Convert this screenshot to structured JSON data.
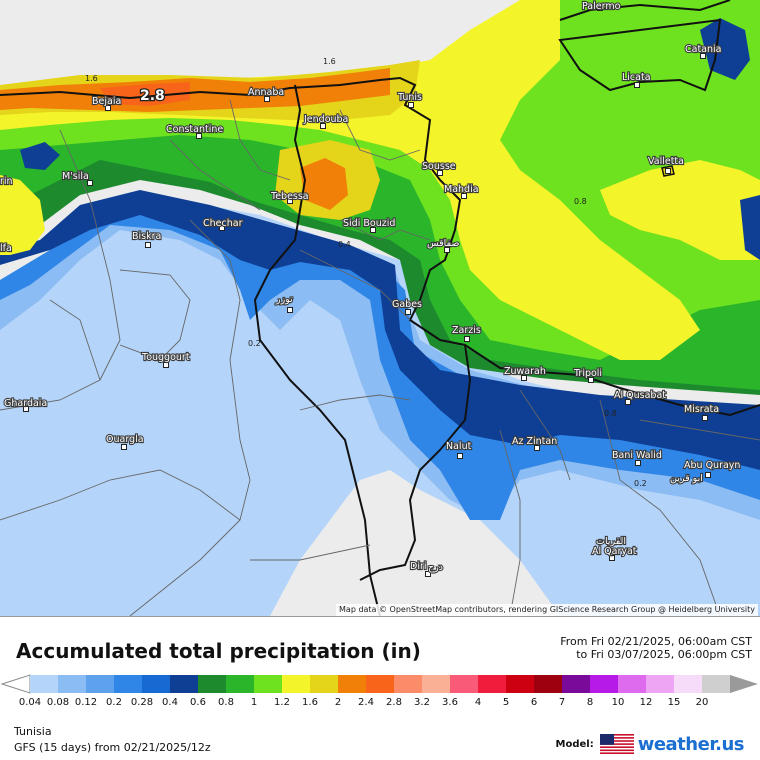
{
  "map": {
    "region_name": "Tunisia",
    "attribution": "Map data © OpenStreetMap contributors, rendering GIScience Research Group @ Heidelberg University",
    "max_value_label": "2.8",
    "cities": [
      {
        "name": "Palermo"
      },
      {
        "name": "Catania"
      },
      {
        "name": "Licata"
      },
      {
        "name": "Valletta"
      },
      {
        "name": "Tunis"
      },
      {
        "name": "Annaba"
      },
      {
        "name": "Bejaia"
      },
      {
        "name": "Constantine"
      },
      {
        "name": "Jendouba"
      },
      {
        "name": "Sousse"
      },
      {
        "name": "Mahdia"
      },
      {
        "name": "M'sila"
      },
      {
        "name": "Tebessa"
      },
      {
        "name": "Sidi Bouzid"
      },
      {
        "name": "صفاقس"
      },
      {
        "name": "Biskra"
      },
      {
        "name": "Chechar"
      },
      {
        "name": "توزر"
      },
      {
        "name": "Gabes"
      },
      {
        "name": "Zarzis"
      },
      {
        "name": "Touggourt"
      },
      {
        "name": "Zuwarah"
      },
      {
        "name": "Tripoli"
      },
      {
        "name": "Al Qusabat"
      },
      {
        "name": "Misrata"
      },
      {
        "name": "Ghardaia"
      },
      {
        "name": "Ouargla"
      },
      {
        "name": "Nalut"
      },
      {
        "name": "Az Zintan"
      },
      {
        "name": "Bani Walid"
      },
      {
        "name": "Abu Qurayn"
      },
      {
        "name": "ابو قرين"
      },
      {
        "name": "القريات"
      },
      {
        "name": "Al Qaryat"
      },
      {
        "name": "Diri"
      },
      {
        "name": "درج"
      },
      {
        "name": "rin"
      },
      {
        "name": "lfa"
      }
    ],
    "contours": [
      "1.6",
      "1.6",
      "0.8",
      "0.4",
      "0.2",
      "0.8",
      "0.2"
    ]
  },
  "legend": {
    "title": "Accumulated total precipitation (in)",
    "from_text": "From Fri 02/21/2025, 06:00am CST",
    "to_text": "to Fri 03/07/2025, 06:00pm CST",
    "bins": [
      {
        "label": "0.04",
        "color": "#b4d4fa"
      },
      {
        "label": "0.08",
        "color": "#8cbcf4"
      },
      {
        "label": "0.12",
        "color": "#5ea2ee"
      },
      {
        "label": "0.2",
        "color": "#2f86e6"
      },
      {
        "label": "0.28",
        "color": "#176ad2"
      },
      {
        "label": "0.4",
        "color": "#0e3f95"
      },
      {
        "label": "0.6",
        "color": "#1e8a2e"
      },
      {
        "label": "0.8",
        "color": "#2ab52a"
      },
      {
        "label": "1",
        "color": "#6ee21e"
      },
      {
        "label": "1.2",
        "color": "#f4f42a"
      },
      {
        "label": "1.6",
        "color": "#e4d41a"
      },
      {
        "label": "2",
        "color": "#f08008"
      },
      {
        "label": "2.4",
        "color": "#f8651a"
      },
      {
        "label": "2.8",
        "color": "#fa8c6a"
      },
      {
        "label": "3.2",
        "color": "#fab094"
      },
      {
        "label": "3.6",
        "color": "#f85a78"
      },
      {
        "label": "4",
        "color": "#f01c3c"
      },
      {
        "label": "5",
        "color": "#cc0010"
      },
      {
        "label": "6",
        "color": "#9e0010"
      },
      {
        "label": "7",
        "color": "#7a0a9a"
      },
      {
        "label": "8",
        "color": "#b61ae6"
      },
      {
        "label": "10",
        "color": "#de6aee"
      },
      {
        "label": "12",
        "color": "#eea6f4"
      },
      {
        "label": "15",
        "color": "#f6dcf8"
      },
      {
        "label": "20",
        "color": "#cfcfcf"
      }
    ],
    "region": "Tunisia",
    "run": "GFS (15 days) from  02/21/2025/12z",
    "model_label": "Model:",
    "brand": "weather.us",
    "colors": {
      "brand": "#1a6fd1"
    }
  }
}
